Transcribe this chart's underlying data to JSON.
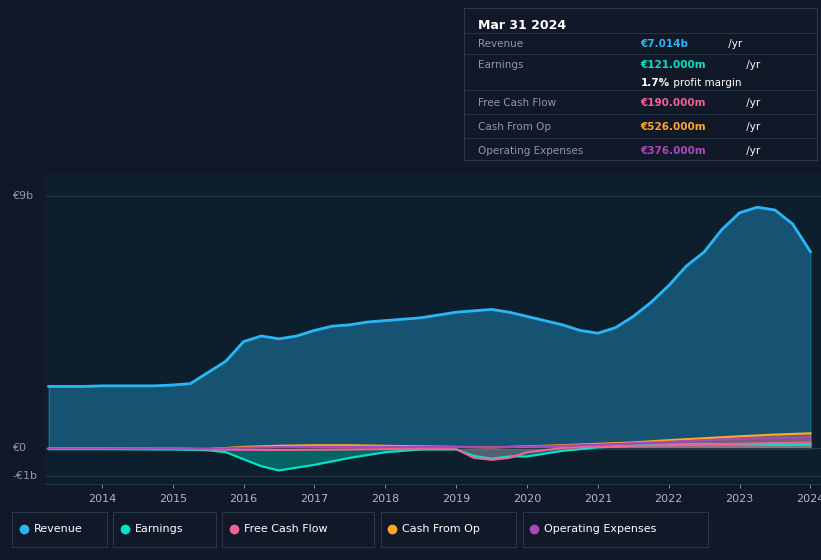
{
  "background_color": "#111827",
  "plot_bg_color": "#0d1f2d",
  "ylabel_top": "€9b",
  "ylabel_zero": "€0",
  "ylabel_neg": "-€1b",
  "x_ticks": [
    2014,
    2015,
    2016,
    2017,
    2018,
    2019,
    2020,
    2021,
    2022,
    2023,
    2024
  ],
  "ylim": [
    -1300000000.0,
    9800000000.0
  ],
  "colors": {
    "revenue": "#29b6f6",
    "earnings": "#00e5cc",
    "free_cash_flow": "#f06292",
    "cash_from_op": "#ffa726",
    "operating_expenses": "#ab47bc"
  },
  "legend_labels": [
    "Revenue",
    "Earnings",
    "Free Cash Flow",
    "Cash From Op",
    "Operating Expenses"
  ],
  "info_box": {
    "date": "Mar 31 2024",
    "revenue_label": "Revenue",
    "revenue_colored": "€7.014b",
    "revenue_suffix": " /yr",
    "earnings_label": "Earnings",
    "earnings_colored": "€121.000m",
    "earnings_suffix": " /yr",
    "margin_bold": "1.7%",
    "margin_rest": " profit margin",
    "fcf_label": "Free Cash Flow",
    "fcf_colored": "€190.000m",
    "fcf_suffix": " /yr",
    "cfop_label": "Cash From Op",
    "cfop_colored": "€526.000m",
    "cfop_suffix": " /yr",
    "opex_label": "Operating Expenses",
    "opex_colored": "€376.000m",
    "opex_suffix": " /yr"
  },
  "revenue": {
    "x": [
      2013.25,
      2013.75,
      2014.0,
      2014.25,
      2014.75,
      2015.0,
      2015.25,
      2015.75,
      2016.0,
      2016.25,
      2016.5,
      2016.75,
      2017.0,
      2017.25,
      2017.5,
      2017.75,
      2018.0,
      2018.25,
      2018.5,
      2018.75,
      2019.0,
      2019.25,
      2019.5,
      2019.75,
      2020.0,
      2020.25,
      2020.5,
      2020.75,
      2021.0,
      2021.25,
      2021.5,
      2021.75,
      2022.0,
      2022.25,
      2022.5,
      2022.75,
      2023.0,
      2023.25,
      2023.5,
      2023.75,
      2024.0
    ],
    "y": [
      2200000000.0,
      2200000000.0,
      2220000000.0,
      2220000000.0,
      2220000000.0,
      2250000000.0,
      2300000000.0,
      3100000000.0,
      3800000000.0,
      4000000000.0,
      3900000000.0,
      4000000000.0,
      4200000000.0,
      4350000000.0,
      4400000000.0,
      4500000000.0,
      4550000000.0,
      4600000000.0,
      4650000000.0,
      4750000000.0,
      4850000000.0,
      4900000000.0,
      4950000000.0,
      4850000000.0,
      4700000000.0,
      4550000000.0,
      4400000000.0,
      4200000000.0,
      4100000000.0,
      4300000000.0,
      4700000000.0,
      5200000000.0,
      5800000000.0,
      6500000000.0,
      7000000000.0,
      7800000000.0,
      8400000000.0,
      8600000000.0,
      8500000000.0,
      8000000000.0,
      7014000000.0
    ]
  },
  "earnings": {
    "x": [
      2013.25,
      2014.0,
      2014.75,
      2015.0,
      2015.5,
      2015.75,
      2016.0,
      2016.25,
      2016.5,
      2017.0,
      2017.5,
      2018.0,
      2018.5,
      2019.0,
      2019.25,
      2019.5,
      2019.75,
      2020.0,
      2020.5,
      2021.0,
      2021.5,
      2022.0,
      2022.5,
      2023.0,
      2023.5,
      2024.0
    ],
    "y": [
      -40000000.0,
      -40000000.0,
      -50000000.0,
      -50000000.0,
      -80000000.0,
      -150000000.0,
      -400000000.0,
      -650000000.0,
      -800000000.0,
      -600000000.0,
      -350000000.0,
      -150000000.0,
      -50000000.0,
      -50000000.0,
      -280000000.0,
      -380000000.0,
      -300000000.0,
      -300000000.0,
      -100000000.0,
      20000000.0,
      80000000.0,
      120000000.0,
      150000000.0,
      130000000.0,
      120000000.0,
      121000000.0
    ]
  },
  "free_cash_flow": {
    "x": [
      2013.25,
      2014.0,
      2014.75,
      2015.0,
      2015.5,
      2016.0,
      2016.5,
      2017.0,
      2017.5,
      2018.0,
      2018.5,
      2019.0,
      2019.25,
      2019.5,
      2019.75,
      2020.0,
      2020.5,
      2021.0,
      2021.5,
      2022.0,
      2022.5,
      2023.0,
      2023.5,
      2024.0
    ],
    "y": [
      -10000000.0,
      -10000000.0,
      -20000000.0,
      -20000000.0,
      -50000000.0,
      -60000000.0,
      -70000000.0,
      -60000000.0,
      -50000000.0,
      -40000000.0,
      -40000000.0,
      -40000000.0,
      -350000000.0,
      -420000000.0,
      -350000000.0,
      -150000000.0,
      0.0,
      50000000.0,
      80000000.0,
      100000000.0,
      120000000.0,
      150000000.0,
      180000000.0,
      190000000.0
    ]
  },
  "cash_from_op": {
    "x": [
      2013.25,
      2014.0,
      2014.75,
      2015.0,
      2015.5,
      2016.0,
      2016.5,
      2017.0,
      2017.5,
      2018.0,
      2018.5,
      2019.0,
      2019.5,
      2020.0,
      2020.5,
      2021.0,
      2021.5,
      2022.0,
      2022.5,
      2023.0,
      2023.5,
      2024.0
    ],
    "y": [
      -30000000.0,
      -30000000.0,
      -30000000.0,
      -30000000.0,
      -40000000.0,
      40000000.0,
      80000000.0,
      100000000.0,
      100000000.0,
      80000000.0,
      60000000.0,
      40000000.0,
      20000000.0,
      60000000.0,
      100000000.0,
      150000000.0,
      200000000.0,
      280000000.0,
      350000000.0,
      420000000.0,
      480000000.0,
      526000000.0
    ]
  },
  "operating_expenses": {
    "x": [
      2013.25,
      2014.0,
      2014.75,
      2015.0,
      2015.5,
      2016.0,
      2016.5,
      2017.0,
      2017.5,
      2018.0,
      2018.5,
      2019.0,
      2019.5,
      2020.0,
      2020.5,
      2021.0,
      2021.5,
      2022.0,
      2022.5,
      2023.0,
      2023.5,
      2024.0
    ],
    "y": [
      -20000000.0,
      -20000000.0,
      -20000000.0,
      -20000000.0,
      -30000000.0,
      10000000.0,
      30000000.0,
      40000000.0,
      40000000.0,
      40000000.0,
      40000000.0,
      40000000.0,
      20000000.0,
      50000000.0,
      80000000.0,
      120000000.0,
      170000000.0,
      220000000.0,
      280000000.0,
      330000000.0,
      360000000.0,
      376000000.0
    ]
  }
}
